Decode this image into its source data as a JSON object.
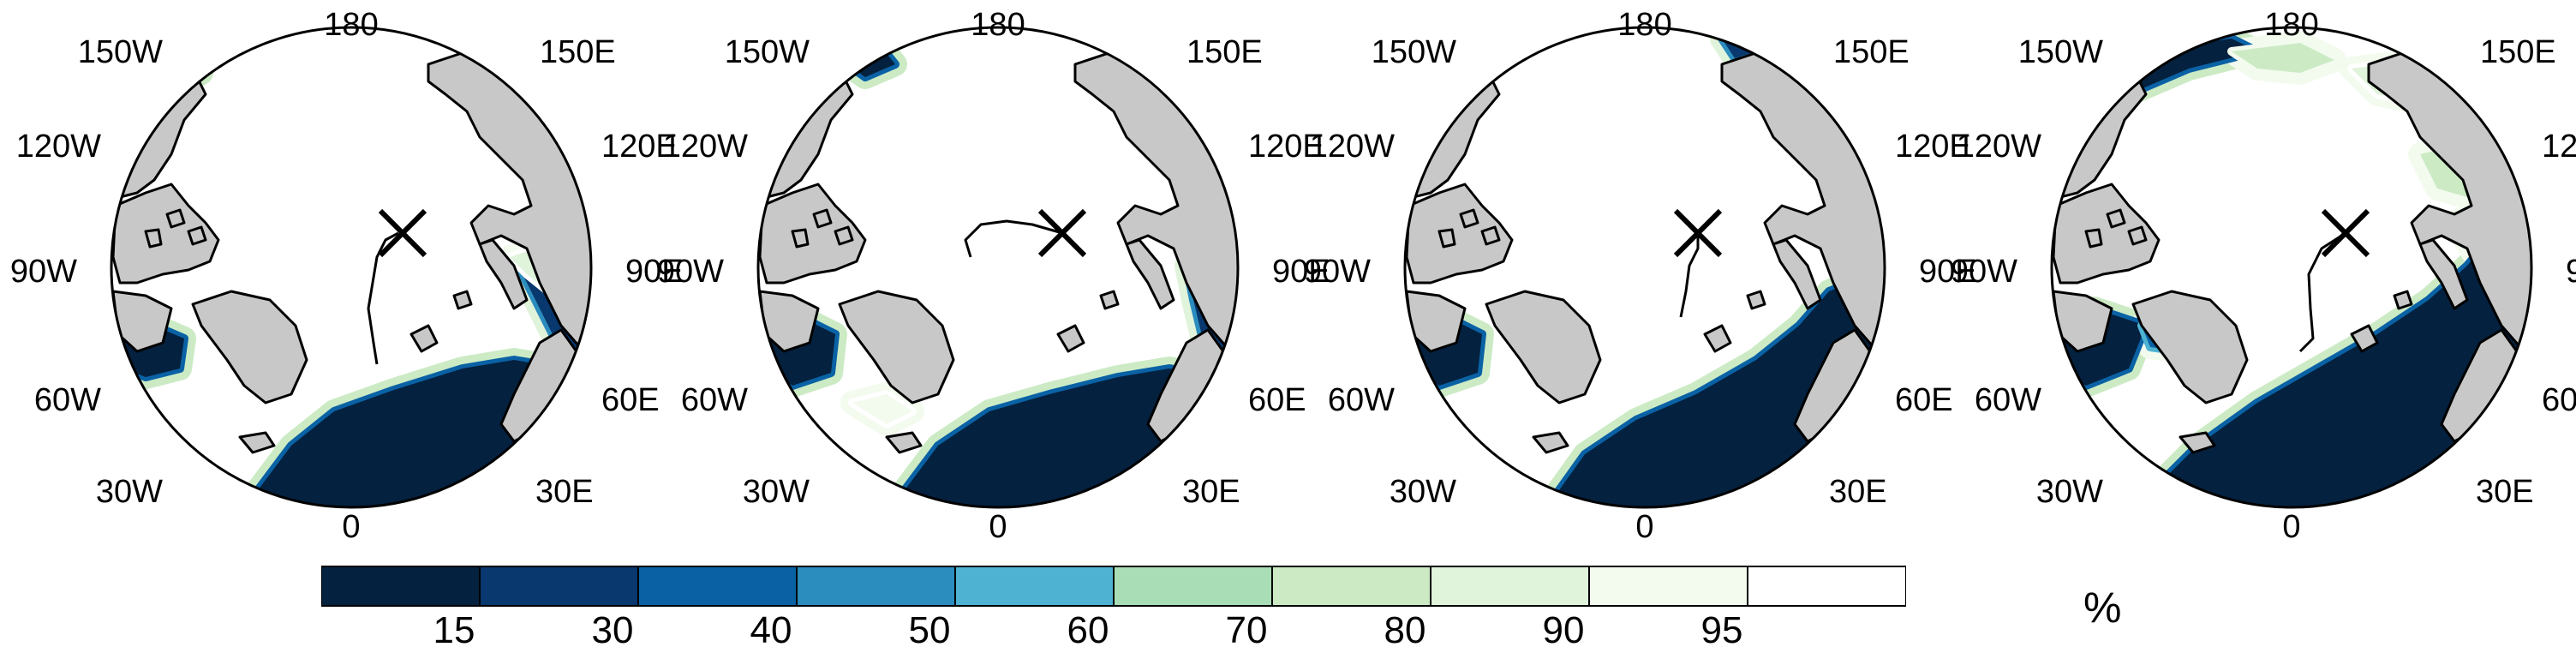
{
  "panels": [
    {
      "id": "panel-1"
    },
    {
      "id": "panel-2"
    },
    {
      "id": "panel-3"
    },
    {
      "id": "panel-4"
    }
  ],
  "longitude_labels": [
    "180",
    "150E",
    "120E",
    "90E",
    "60E",
    "30E",
    "0",
    "30W",
    "60W",
    "90W",
    "120W",
    "150W"
  ],
  "marker_symbol": "X",
  "colorbar": {
    "colors": [
      "#04213f",
      "#08386e",
      "#0a62a5",
      "#2b8cbe",
      "#4eb3d3",
      "#a8ddb5",
      "#ccebc5",
      "#e0f3db",
      "#f3fbef",
      "#ffffff"
    ],
    "tick_labels": [
      "15",
      "30",
      "40",
      "50",
      "60",
      "70",
      "80",
      "90",
      "95"
    ],
    "unit": "%"
  },
  "legend_colors": {
    "land": "#c8c8c8",
    "open_water": "#04213f",
    "ice": "#ffffff"
  }
}
